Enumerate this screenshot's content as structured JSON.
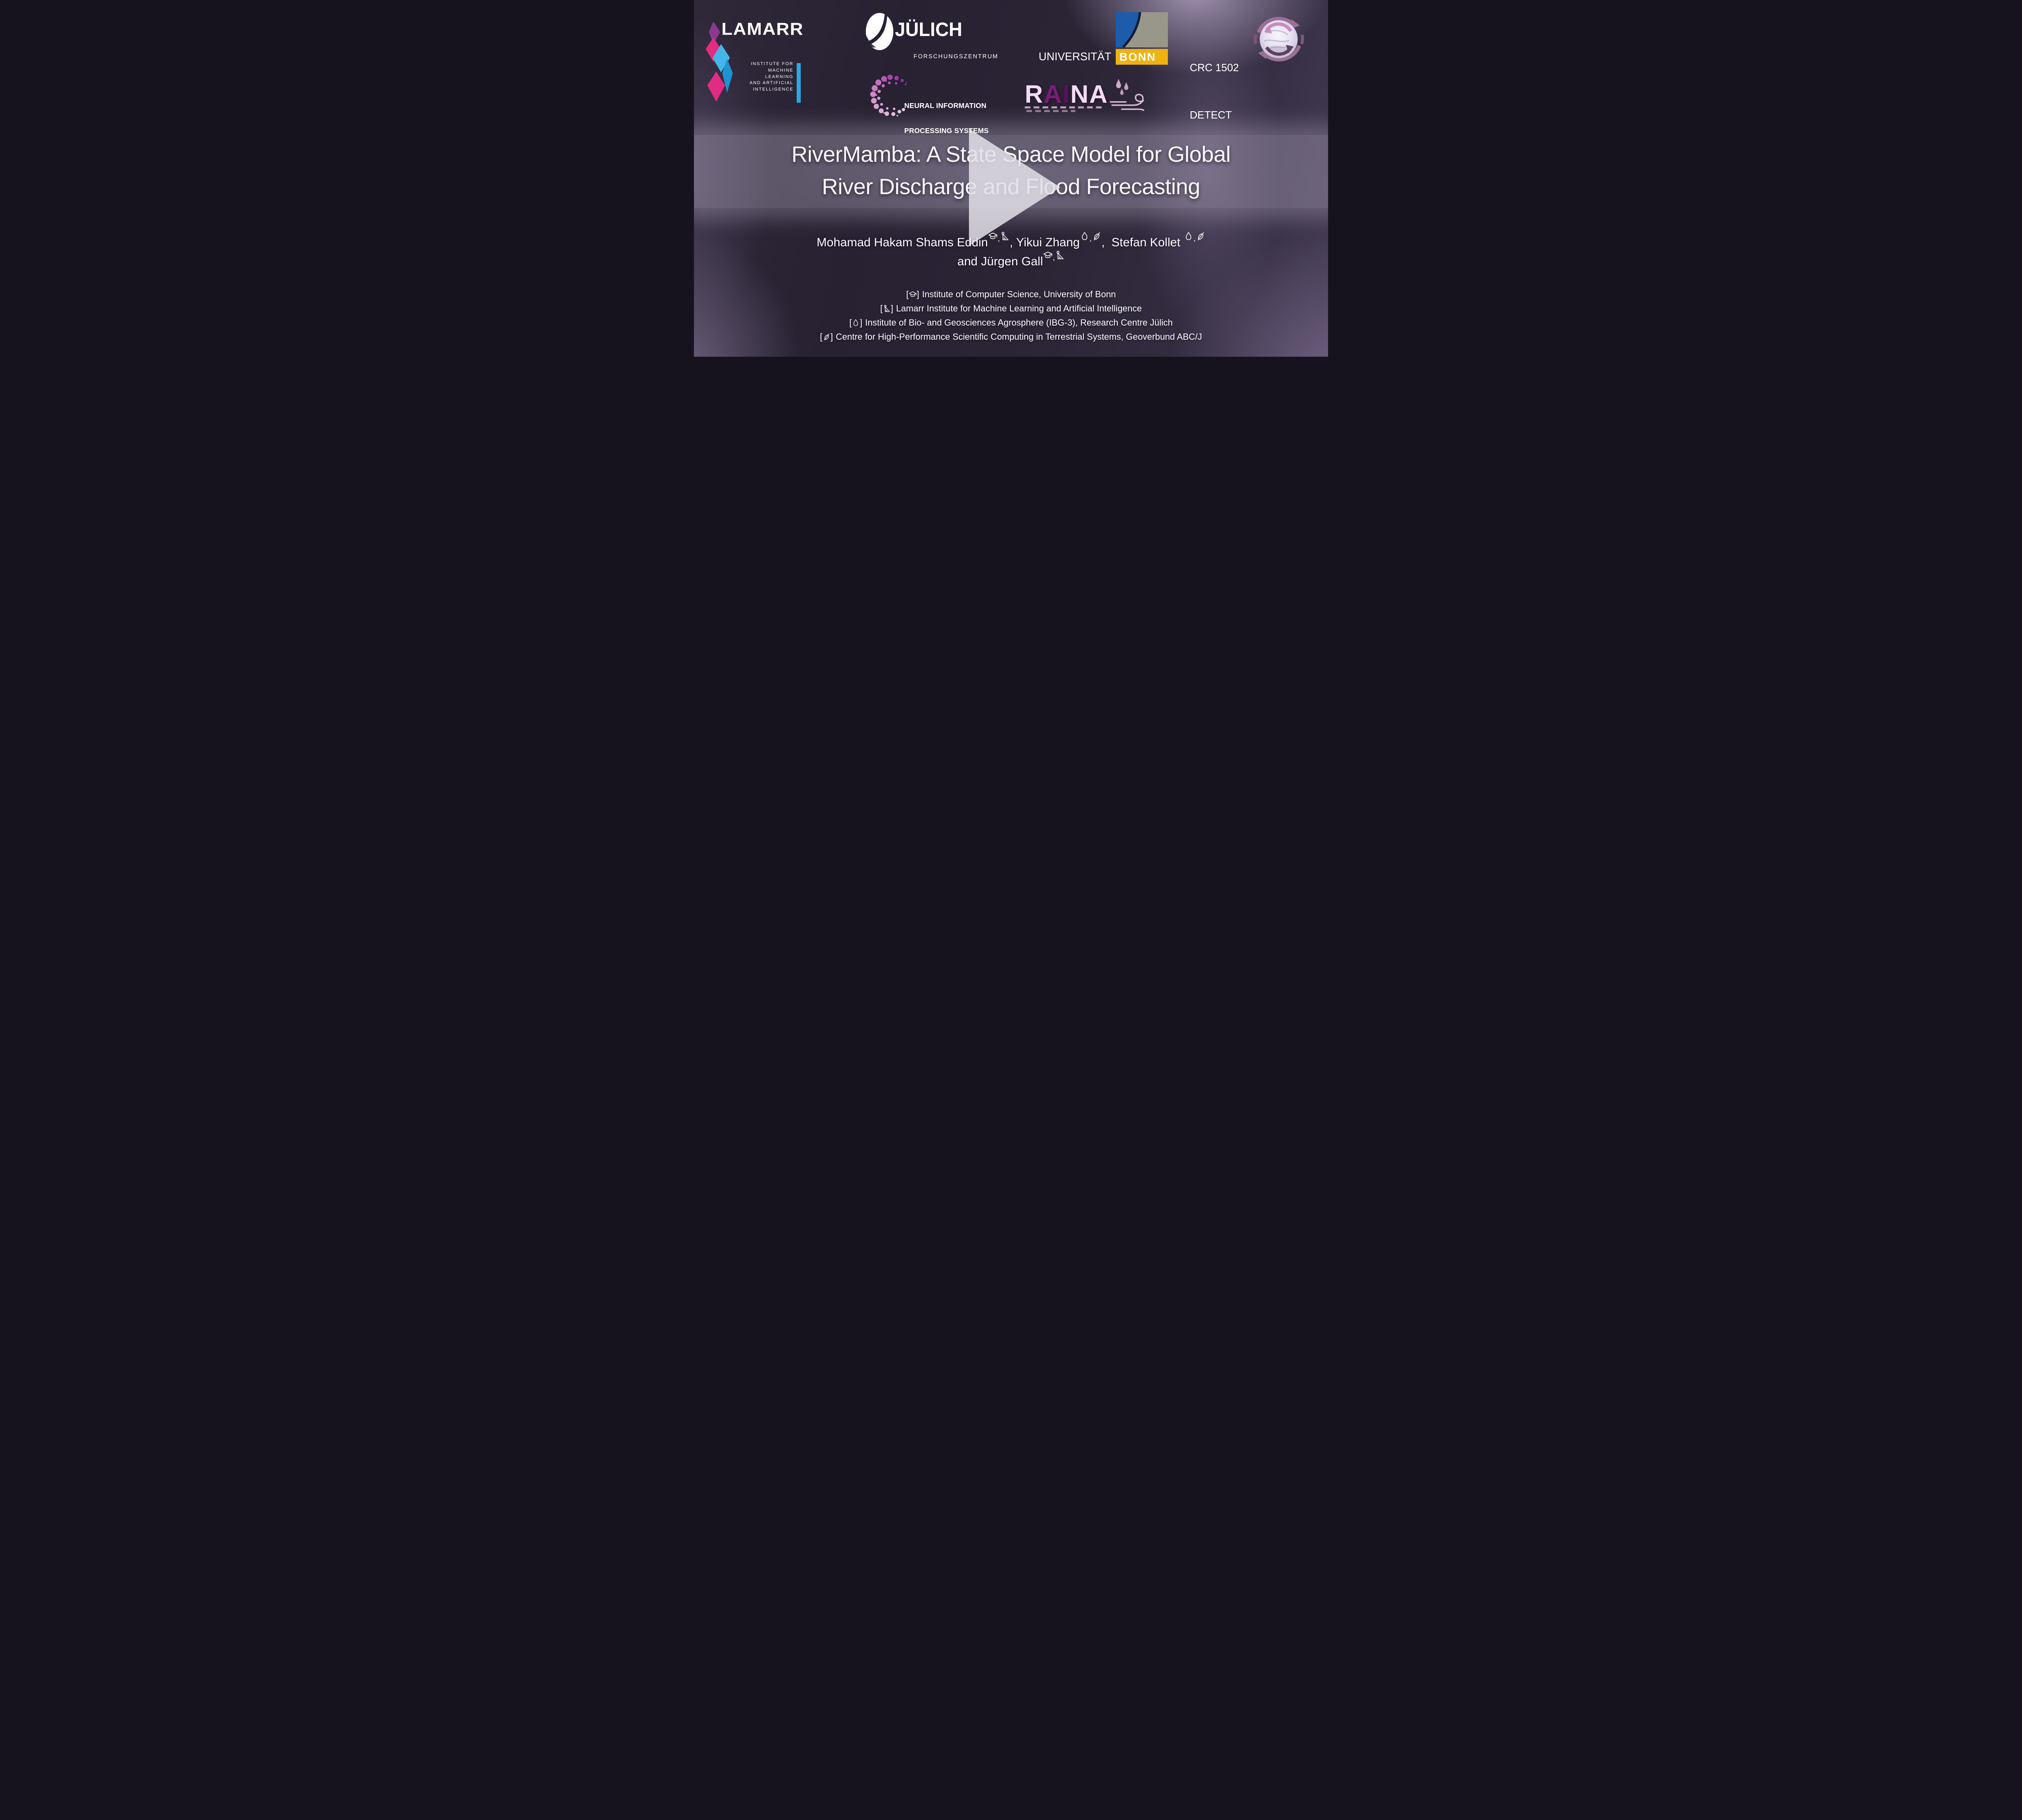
{
  "video_title": {
    "line1": "RiverMamba: A State Space Model for Global",
    "line2": "River Discharge and Flood Forecasting"
  },
  "header": {
    "lamarr": {
      "wordmark": "LAMARR",
      "sub_lines": [
        "INSTITUTE FOR",
        "MACHINE LEARNING",
        "AND ARTIFICIAL",
        "INTELLIGENCE"
      ],
      "accent_color": "#29a8e0",
      "diamond_colors": [
        "#8b3990",
        "#e22b82",
        "#45b6e8",
        "#1d93d2"
      ]
    },
    "juelich": {
      "name": "JÜLICH",
      "subtitle": "FORSCHUNGSZENTRUM"
    },
    "uni_bonn": {
      "university": "UNIVERSITÄT",
      "city": "BONN",
      "crest_blue": "#1c5cab",
      "crest_gray": "#98978a",
      "banner_yellow": "#eeb211"
    },
    "crc": {
      "line1": "CRC 1502",
      "line2": "DETECT"
    },
    "neurips": {
      "line1": "NEURAL INFORMATION",
      "line2": "PROCESSING SYSTEMS"
    },
    "raina": {
      "letters": [
        {
          "ch": "R",
          "color": "#f4dbf4"
        },
        {
          "ch": "A",
          "color": "#7b1b79"
        },
        {
          "ch": "I",
          "color": "#5f0d63"
        },
        {
          "ch": "N",
          "color": "#f4dbf4"
        },
        {
          "ch": "A",
          "color": "#f4dbf4"
        }
      ],
      "drop_color": "#cfa9ca",
      "wind_color": "#dcbcd8"
    },
    "globe_arrow_color": "#9b7095"
  },
  "player": {
    "play_button": "play"
  },
  "authors": {
    "sup_separator": ",",
    "row1": [
      {
        "name": "Mohamad Hakam Shams Eddin",
        "symbols": [
          "grad-cap",
          "set-square"
        ],
        "suffix": ", "
      },
      {
        "name": "Yikui Zhang",
        "symbols": [
          "droplet",
          "leaf"
        ],
        "suffix": ",  "
      },
      {
        "name": "Stefan Kollet ",
        "symbols": [
          "droplet",
          "leaf"
        ],
        "suffix": ""
      }
    ],
    "row2": [
      {
        "name": "and Jürgen Gall",
        "symbols": [
          "grad-cap",
          "set-square"
        ],
        "suffix": ""
      }
    ]
  },
  "affil_brackets": [
    "[",
    "]"
  ],
  "affiliations": [
    {
      "symbol": "grad-cap",
      "text": "Institute of Computer Science, University of Bonn"
    },
    {
      "symbol": "set-square",
      "text": "Lamarr Institute for Machine Learning and Artificial Intelligence"
    },
    {
      "symbol": "droplet",
      "text": "Institute of Bio- and Geosciences Agrosphere (IBG-3), Research Centre Jülich"
    },
    {
      "symbol": "leaf",
      "text": "Centre for High-Performance Scientific Computing in Terrestrial Systems, Geoverbund ABC/J"
    }
  ]
}
